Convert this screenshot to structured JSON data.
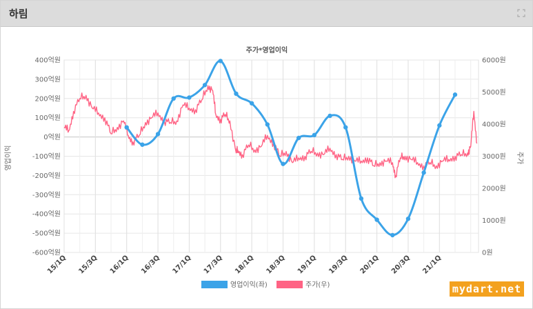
{
  "panel": {
    "title": "하림",
    "expand_icon": "expand-icon"
  },
  "watermark": "mydart.net",
  "chart_data": {
    "type": "line",
    "title": "주가*영업이익",
    "ylabel_left": "영업이익",
    "ylabel_right": "주가",
    "y_left": {
      "min": -600,
      "max": 400,
      "step": 100,
      "suffix": "억원"
    },
    "y_right": {
      "min": 0,
      "max": 6000,
      "step": 1000,
      "suffix": "원"
    },
    "x_ticks": [
      "15/1Q",
      "15/3Q",
      "16/1Q",
      "16/3Q",
      "17/1Q",
      "17/3Q",
      "18/1Q",
      "18/3Q",
      "19/1Q",
      "19/3Q",
      "20/1Q",
      "20/3Q",
      "21/1Q"
    ],
    "x_range": [
      0,
      26.5
    ],
    "grid": true,
    "legend_position": "bottom",
    "series": [
      {
        "name": "영업이익(좌)",
        "axis": "left",
        "color": "#3ba3e8",
        "x": [
          4,
          5,
          6,
          7,
          8,
          9,
          10,
          11,
          12,
          13,
          14,
          15,
          16,
          17,
          18,
          19,
          20,
          21,
          22,
          23,
          24,
          25
        ],
        "values": [
          50,
          -40,
          15,
          200,
          205,
          270,
          395,
          225,
          175,
          65,
          -140,
          -5,
          10,
          110,
          50,
          -320,
          -430,
          -510,
          -425,
          -185,
          60,
          220
        ]
      },
      {
        "name": "주가(우)",
        "axis": "right",
        "color": "#ff6384",
        "x": [
          0,
          0.3,
          0.6,
          1,
          1.4,
          1.8,
          2.2,
          2.6,
          3,
          3.4,
          3.8,
          4.1,
          4.4,
          4.8,
          5.2,
          5.6,
          6,
          6.4,
          6.8,
          7.2,
          7.6,
          8,
          8.4,
          8.8,
          9.2,
          9.5,
          9.7,
          10,
          10.3,
          10.6,
          11,
          11.1,
          11.4,
          11.8,
          12.2,
          12.6,
          13,
          13.4,
          13.8,
          14.2,
          14.6,
          15,
          15.4,
          15.8,
          16.2,
          16.6,
          17,
          17.4,
          17.8,
          18.2,
          18.6,
          19,
          19.4,
          19.8,
          20.2,
          20.6,
          21,
          21.2,
          21.5,
          21.8,
          22.2,
          22.6,
          23,
          23.4,
          23.8,
          24.2,
          24.6,
          25,
          25.4,
          25.8,
          26,
          26.2,
          26.4
        ],
        "values": [
          3900,
          3800,
          4400,
          4800,
          4900,
          4500,
          4350,
          4200,
          3700,
          3900,
          4100,
          3650,
          3450,
          3650,
          4050,
          4200,
          4350,
          4100,
          4050,
          4100,
          4600,
          4500,
          4450,
          4750,
          5200,
          5050,
          4300,
          4150,
          4300,
          4100,
          3100,
          3200,
          3050,
          3350,
          3200,
          3300,
          3650,
          3400,
          3000,
          3150,
          2800,
          2950,
          3000,
          3150,
          3100,
          3050,
          3250,
          3050,
          2900,
          3000,
          2850,
          2850,
          2950,
          2700,
          2800,
          2850,
          2800,
          2400,
          2950,
          3000,
          2900,
          2800,
          2700,
          2800,
          2700,
          2850,
          2900,
          3000,
          3050,
          3100,
          3300,
          4400,
          3400
        ]
      }
    ]
  }
}
